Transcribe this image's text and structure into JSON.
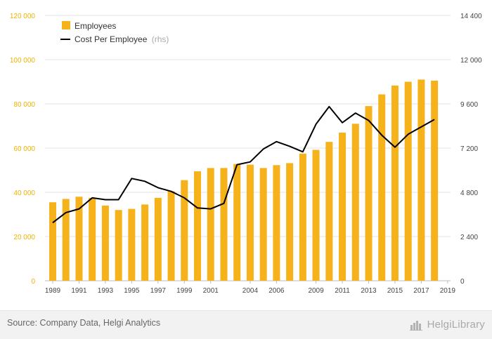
{
  "chart_data": {
    "type": "bar",
    "x": [
      1989,
      1990,
      1991,
      1992,
      1993,
      1994,
      1995,
      1996,
      1997,
      1998,
      1999,
      2000,
      2001,
      2002,
      2003,
      2004,
      2005,
      2006,
      2007,
      2008,
      2009,
      2010,
      2011,
      2012,
      2013,
      2014,
      2015,
      2016,
      2017,
      2018,
      2019
    ],
    "x_tick_labels": [
      "1989",
      "1991",
      "1993",
      "1995",
      "1997",
      "1999",
      "2001",
      "2004",
      "2006",
      "2009",
      "2011",
      "2013",
      "2015",
      "2017",
      "2019"
    ],
    "series": [
      {
        "name": "Employees",
        "kind": "bar",
        "axis": "left",
        "color": "#f5b21b",
        "values": [
          35500,
          37000,
          38000,
          37500,
          34000,
          32000,
          32500,
          34500,
          37500,
          40500,
          45500,
          49500,
          51000,
          51000,
          52800,
          52500,
          51000,
          52300,
          53200,
          57500,
          59200,
          62800,
          67000,
          71000,
          79000,
          84300,
          88300,
          90000,
          91000,
          90500,
          null
        ]
      },
      {
        "name": "Cost Per Employee",
        "name_note": "(rhs)",
        "kind": "line",
        "axis": "right",
        "color": "#000000",
        "values": [
          3150,
          3700,
          3900,
          4500,
          4400,
          4400,
          5550,
          5400,
          5050,
          4850,
          4500,
          3950,
          3900,
          4200,
          6300,
          6450,
          7150,
          7550,
          7300,
          7000,
          8500,
          9450,
          8580,
          9100,
          8700,
          7900,
          7250,
          7950,
          8350,
          8750,
          null
        ]
      }
    ],
    "y_left": {
      "range": [
        0,
        120000
      ],
      "ticks": [
        "0",
        "20 000",
        "40 000",
        "60 000",
        "80 000",
        "100 000",
        "120 000"
      ],
      "color": "#f0b100"
    },
    "y_right": {
      "range": [
        0,
        14400
      ],
      "ticks": [
        "0",
        "2 400",
        "4 800",
        "7 200",
        "9 600",
        "12 000",
        "14 400"
      ]
    },
    "grid": true,
    "legend_position": "top-left"
  },
  "footer": {
    "source": "Source: Company Data, Helgi Analytics",
    "logo_text": "HelgiLibrary",
    "logo_icon": "helgi-logo-icon"
  }
}
